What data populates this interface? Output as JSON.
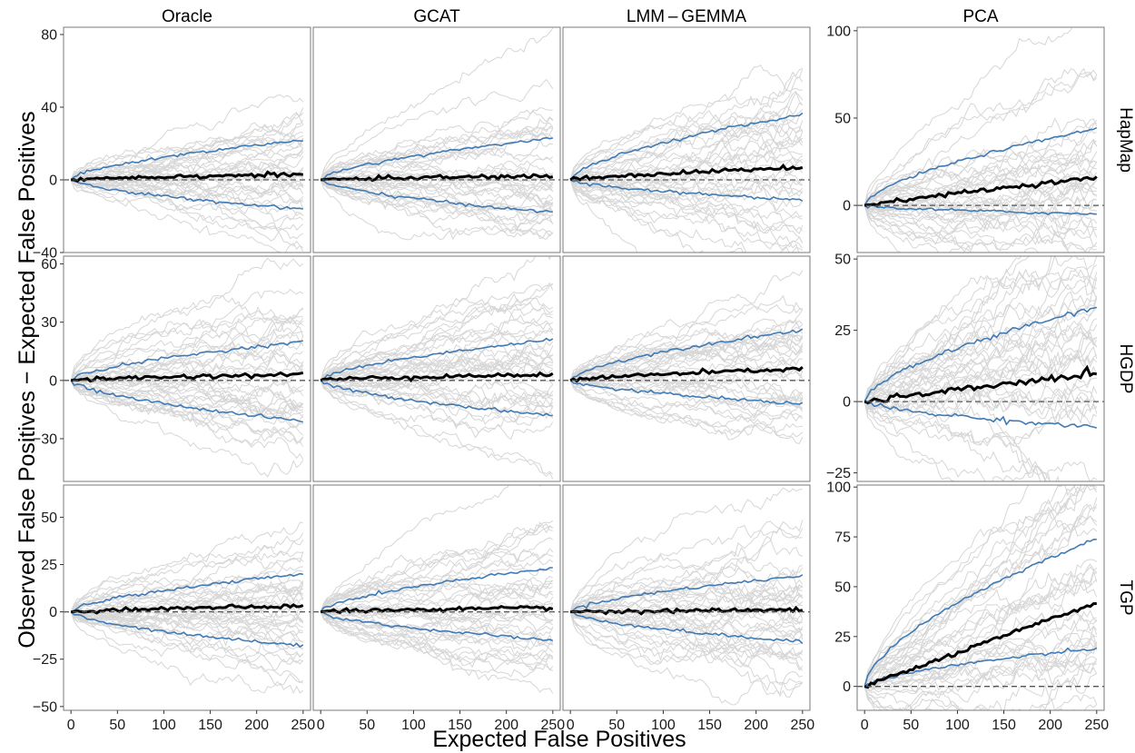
{
  "chart_data": {
    "type": "line",
    "layout": "faceted grid, 3 rows x 4 columns",
    "xlabel": "Expected False Positives",
    "ylabel": "Observed False Positives − Expected False Positives",
    "columns": [
      "Oracle",
      "GCAT",
      "LMM – GEMMA",
      "PCA"
    ],
    "rows": [
      "HapMap",
      "HGDP",
      "TGP"
    ],
    "x_ticks": [
      0,
      50,
      100,
      150,
      200,
      250
    ],
    "xlim": [
      -8,
      258
    ],
    "shared_y_first_three_columns": true,
    "row_y": [
      {
        "ylim": [
          -40,
          84
        ],
        "ticks": [
          -40,
          0,
          40,
          80
        ],
        "pca_ylim": [
          -27,
          102
        ],
        "pca_ticks": [
          0,
          50,
          100
        ]
      },
      {
        "ylim": [
          -52,
          64
        ],
        "ticks": [
          -30,
          0,
          30,
          60
        ],
        "pca_ylim": [
          -28,
          51
        ],
        "pca_ticks": [
          -25,
          0,
          25,
          50
        ]
      },
      {
        "ylim": [
          -52,
          67
        ],
        "ticks": [
          -50,
          -25,
          0,
          25,
          50
        ],
        "pca_ylim": [
          -12,
          101
        ],
        "pca_ticks": [
          0,
          25,
          50,
          75,
          100
        ]
      }
    ],
    "reference_line": {
      "y": 0,
      "style": "dashed",
      "color": "#555555"
    },
    "colors": {
      "replicates": "#d6d6d6",
      "mean": "#000000",
      "quantile_band": "#3f7ab5"
    },
    "panels": [
      {
        "row": "HapMap",
        "column": "Oracle",
        "mean_end": 3,
        "upper_end": 22,
        "lower_end": -16,
        "spread_end": 34,
        "mean_shape": 0.0
      },
      {
        "row": "HapMap",
        "column": "GCAT",
        "mean_end": 2,
        "upper_end": 23,
        "lower_end": -18,
        "spread_end": 36,
        "mean_shape": 0.0
      },
      {
        "row": "HapMap",
        "column": "LMM – GEMMA",
        "mean_end": 7,
        "upper_end": 36,
        "lower_end": -11,
        "spread_end": 50,
        "mean_shape": 0.5
      },
      {
        "row": "HapMap",
        "column": "PCA",
        "mean_end": 16,
        "upper_end": 44,
        "lower_end": -5,
        "spread_end": 55,
        "mean_shape": 0.8
      },
      {
        "row": "HGDP",
        "column": "Oracle",
        "mean_end": 3,
        "upper_end": 20,
        "lower_end": -21,
        "spread_end": 42,
        "mean_shape": 0.0
      },
      {
        "row": "HGDP",
        "column": "GCAT",
        "mean_end": 3,
        "upper_end": 21,
        "lower_end": -18,
        "spread_end": 38,
        "mean_shape": 0.0
      },
      {
        "row": "HGDP",
        "column": "LMM – GEMMA",
        "mean_end": 6,
        "upper_end": 26,
        "lower_end": -12,
        "spread_end": 36,
        "mean_shape": 0.3
      },
      {
        "row": "HGDP",
        "column": "PCA",
        "mean_end": 10,
        "upper_end": 33,
        "lower_end": -9,
        "spread_end": 42,
        "mean_shape": 1.0
      },
      {
        "row": "TGP",
        "column": "Oracle",
        "mean_end": 3,
        "upper_end": 20,
        "lower_end": -18,
        "spread_end": 35,
        "mean_shape": 0.0
      },
      {
        "row": "TGP",
        "column": "GCAT",
        "mean_end": 2,
        "upper_end": 23,
        "lower_end": -15,
        "spread_end": 36,
        "mean_shape": 0.0
      },
      {
        "row": "TGP",
        "column": "LMM – GEMMA",
        "mean_end": 1,
        "upper_end": 19,
        "lower_end": -16,
        "spread_end": 46,
        "mean_shape": 0.0
      },
      {
        "row": "TGP",
        "column": "PCA",
        "mean_end": 42,
        "upper_end": 74,
        "lower_end": 19,
        "spread_end": 55,
        "mean_shape": 1.0
      }
    ]
  }
}
